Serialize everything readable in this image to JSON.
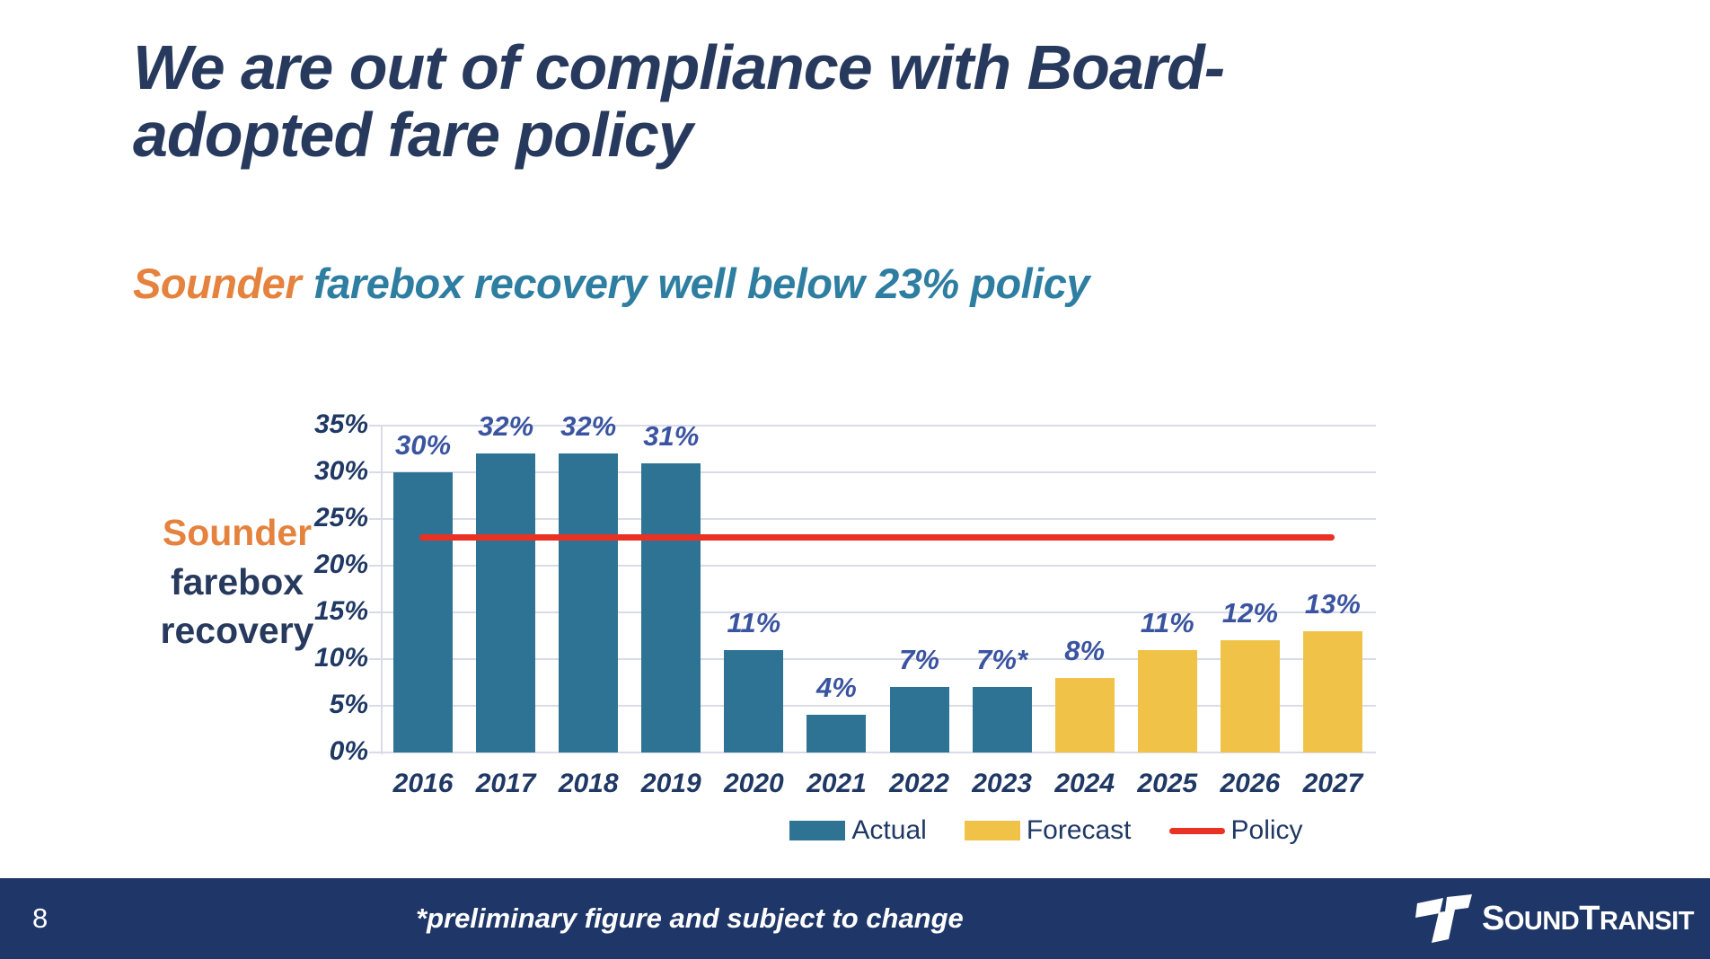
{
  "slide": {
    "title_line1": "We are out of compliance with Board-",
    "title_line2": "adopted fare policy",
    "subtitle": {
      "highlight": "Sounder",
      "rest": "farebox recovery well below 23% policy"
    }
  },
  "chart_data": {
    "type": "bar",
    "title": "Sounder farebox recovery",
    "axis_title_lines": [
      "Sounder",
      "farebox",
      "recovery"
    ],
    "categories": [
      "2016",
      "2017",
      "2018",
      "2019",
      "2020",
      "2021",
      "2022",
      "2023",
      "2024",
      "2025",
      "2026",
      "2027"
    ],
    "values": [
      30,
      32,
      32,
      31,
      11,
      4,
      7,
      7,
      8,
      11,
      12,
      13
    ],
    "labels": [
      "30%",
      "32%",
      "32%",
      "31%",
      "11%",
      "4%",
      "7%",
      "7%*",
      "8%",
      "11%",
      "12%",
      "13%"
    ],
    "series_of": [
      "actual",
      "actual",
      "actual",
      "actual",
      "actual",
      "actual",
      "actual",
      "actual",
      "forecast",
      "forecast",
      "forecast",
      "forecast"
    ],
    "series": [
      {
        "name": "Actual",
        "categories": [
          "2016",
          "2017",
          "2018",
          "2019",
          "2020",
          "2021",
          "2022",
          "2023"
        ],
        "values": [
          30,
          32,
          32,
          31,
          11,
          4,
          7,
          7
        ]
      },
      {
        "name": "Forecast",
        "categories": [
          "2024",
          "2025",
          "2026",
          "2027"
        ],
        "values": [
          8,
          11,
          12,
          13
        ]
      }
    ],
    "policy": {
      "name": "Policy",
      "value": 23
    },
    "xlabel": "",
    "ylabel": "Sounder farebox recovery",
    "ylim": [
      0,
      35
    ],
    "ytick_step": 5,
    "ytick_suffix": "%",
    "grid": "horizontal",
    "legend_position": "bottom",
    "legend": [
      {
        "label": "Actual",
        "color": "#2F7394",
        "type": "swatch"
      },
      {
        "label": "Forecast",
        "color": "#F0C348",
        "type": "swatch"
      },
      {
        "label": "Policy",
        "color": "#E93223",
        "type": "line"
      }
    ],
    "colors": {
      "actual": "#2F7394",
      "forecast": "#F0C348",
      "policy": "#E93223"
    }
  },
  "footer": {
    "page_number": "8",
    "footnote": "*preliminary figure and subject to change",
    "logo": {
      "name": "sound-transit-logo",
      "text_parts": [
        "S",
        "OUND",
        "T",
        "RANSIT"
      ]
    }
  },
  "theme": {
    "title_color": "#273A5E",
    "accent_orange": "#E5823D",
    "accent_teal": "#2E7EA1",
    "axis_text_color": "#1F3864",
    "data_label_color": "#3A54A0",
    "grid_color": "#D9DCE8",
    "footer_bg": "#1F3768"
  }
}
